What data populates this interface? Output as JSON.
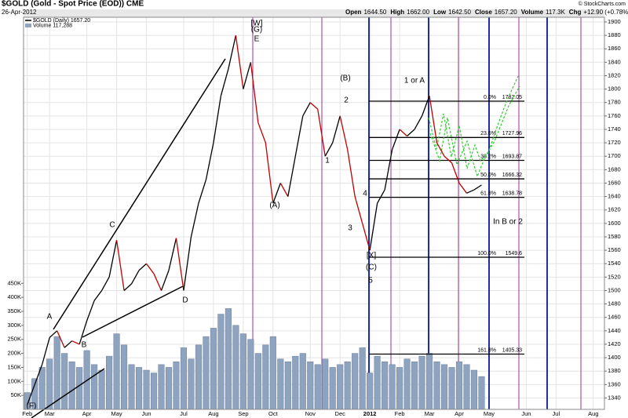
{
  "chart_data": {
    "type": "line",
    "title": "$GOLD (Gold - Spot Price (EOD)) CME",
    "date": "26-Apr-2012",
    "copyright": "© StockCharts.com",
    "quote": [
      {
        "label": "Open",
        "text": "1644.50"
      },
      {
        "label": "High",
        "text": "1662.00"
      },
      {
        "label": "Low",
        "text": "1642.50"
      },
      {
        "label": "Close",
        "text": "1657.20"
      },
      {
        "label": "Volume",
        "text": "117.3K"
      },
      {
        "label": "Chg",
        "text": "+12.90 (+0.78%)"
      }
    ],
    "categories": [
      "Feb",
      null,
      null,
      "Mar",
      null,
      null,
      null,
      null,
      "Apr",
      null,
      null,
      null,
      "May",
      null,
      null,
      null,
      "Jun",
      null,
      null,
      null,
      null,
      "Jul",
      null,
      null,
      null,
      "Aug",
      null,
      null,
      null,
      "Sep",
      null,
      null,
      null,
      "Oct",
      null,
      null,
      null,
      null,
      "Nov",
      null,
      null,
      null,
      "Dec",
      null,
      null,
      null,
      "2012",
      null,
      null,
      null,
      "Feb",
      null,
      null,
      null,
      "Mar",
      null,
      null,
      null,
      "Apr",
      null,
      null,
      null,
      "May",
      null,
      null,
      null,
      null,
      "Jun",
      null,
      null,
      null,
      "Jul",
      null,
      null,
      null,
      null,
      "Aug",
      null
    ],
    "series": [
      {
        "name": "$GOLD (Daily) 1657.20",
        "color": "#000000",
        "down_color": "#c00000",
        "values": [
          1330,
          1360,
          1390,
          1430,
          1440,
          1415,
          1425,
          1420,
          1455,
          1485,
          1500,
          1520,
          1575,
          1500,
          1510,
          1530,
          1540,
          1525,
          1500,
          1530,
          1578,
          1500,
          1580,
          1630,
          1665,
          1720,
          1790,
          1830,
          1880,
          1800,
          1840,
          1750,
          1720,
          1630,
          1660,
          1640,
          1700,
          1760,
          1780,
          1770,
          1700,
          1720,
          1760,
          1710,
          1640,
          1600,
          1560,
          1630,
          1650,
          1710,
          1740,
          1730,
          1740,
          1760,
          1790,
          1720,
          1700,
          1690,
          1660,
          1645,
          1650,
          1657.2,
          null,
          null,
          null,
          null,
          null,
          null,
          null,
          null,
          null,
          null,
          null,
          null,
          null,
          null,
          null,
          null
        ]
      },
      {
        "name": "Volume 117,288",
        "color": "#8ea3c0",
        "axis": "y2",
        "type": "bar",
        "values": [
          60000,
          110000,
          150000,
          180000,
          260000,
          200000,
          170000,
          150000,
          210000,
          160000,
          140000,
          190000,
          270000,
          230000,
          160000,
          150000,
          140000,
          130000,
          160000,
          150000,
          170000,
          220000,
          180000,
          230000,
          260000,
          290000,
          340000,
          360000,
          300000,
          270000,
          250000,
          200000,
          230000,
          260000,
          180000,
          170000,
          190000,
          200000,
          170000,
          160000,
          180000,
          150000,
          160000,
          170000,
          200000,
          220000,
          130000,
          190000,
          170000,
          160000,
          150000,
          180000,
          170000,
          190000,
          200000,
          170000,
          160000,
          150000,
          170000,
          160000,
          140000,
          117288,
          null,
          null,
          null,
          null,
          null,
          null,
          null,
          null,
          null,
          null,
          null,
          null,
          null,
          null,
          null,
          null
        ]
      }
    ],
    "ylim": [
      1323,
      1907
    ],
    "yticks": [
      1340,
      1360,
      1380,
      1400,
      1420,
      1440,
      1460,
      1480,
      1500,
      1520,
      1540,
      1560,
      1580,
      1600,
      1620,
      1640,
      1660,
      1680,
      1700,
      1720,
      1740,
      1760,
      1780,
      1800,
      1820,
      1840,
      1860,
      1880,
      1900
    ],
    "y2lim": [
      0,
      1400000
    ],
    "y2ticks": [
      {
        "value": 50000,
        "label": "50K"
      },
      {
        "value": 100000,
        "label": "100K"
      },
      {
        "value": 150000,
        "label": "150K"
      },
      {
        "value": 200000,
        "label": "200K"
      },
      {
        "value": 250000,
        "label": "250K"
      },
      {
        "value": 300000,
        "label": "300K"
      },
      {
        "value": 350000,
        "label": "350K"
      },
      {
        "value": 400000,
        "label": "400K"
      },
      {
        "value": 450000,
        "label": "450K"
      }
    ],
    "grid": true,
    "fib_levels": [
      {
        "label": "0.0%",
        "value": 1782.05
      },
      {
        "label": "23.6%",
        "value": 1727.96
      },
      {
        "label": "38.2%",
        "value": 1693.87
      },
      {
        "label": "50.0%",
        "value": 1666.32
      },
      {
        "label": "61.8%",
        "value": 1638.78
      },
      {
        "label": "100.0%",
        "value": 1549.6
      },
      {
        "label": "161.8%",
        "value": 1405.33
      }
    ],
    "annotations": [
      {
        "text": "(F)",
        "color": "#cc3366"
      },
      {
        "text": "[W]",
        "color": "#cc0000"
      },
      {
        "text": "(G)",
        "color": "#663366"
      },
      {
        "text": "E",
        "color": "#cc33cc"
      },
      {
        "text": "A",
        "color": "#cc33cc"
      },
      {
        "text": "B",
        "color": "#cc33cc"
      },
      {
        "text": "C",
        "color": "#cc33cc"
      },
      {
        "text": "D",
        "color": "#cc33cc"
      },
      {
        "text": "(A)",
        "color": "#663366"
      },
      {
        "text": "(B)",
        "color": "#663366"
      },
      {
        "text": "1",
        "color": "#cc33cc"
      },
      {
        "text": "2",
        "color": "#cc33cc"
      },
      {
        "text": "3",
        "color": "#cc33cc"
      },
      {
        "text": "4",
        "color": "#cc33cc"
      },
      {
        "text": "[X]",
        "color": "#cc0000"
      },
      {
        "text": "(C)",
        "color": "#663366"
      },
      {
        "text": "5",
        "color": "#cc33cc"
      },
      {
        "text": "1 or A",
        "color": "#cc33cc"
      },
      {
        "text": "In B or 2",
        "color": "#cc33cc"
      }
    ]
  }
}
